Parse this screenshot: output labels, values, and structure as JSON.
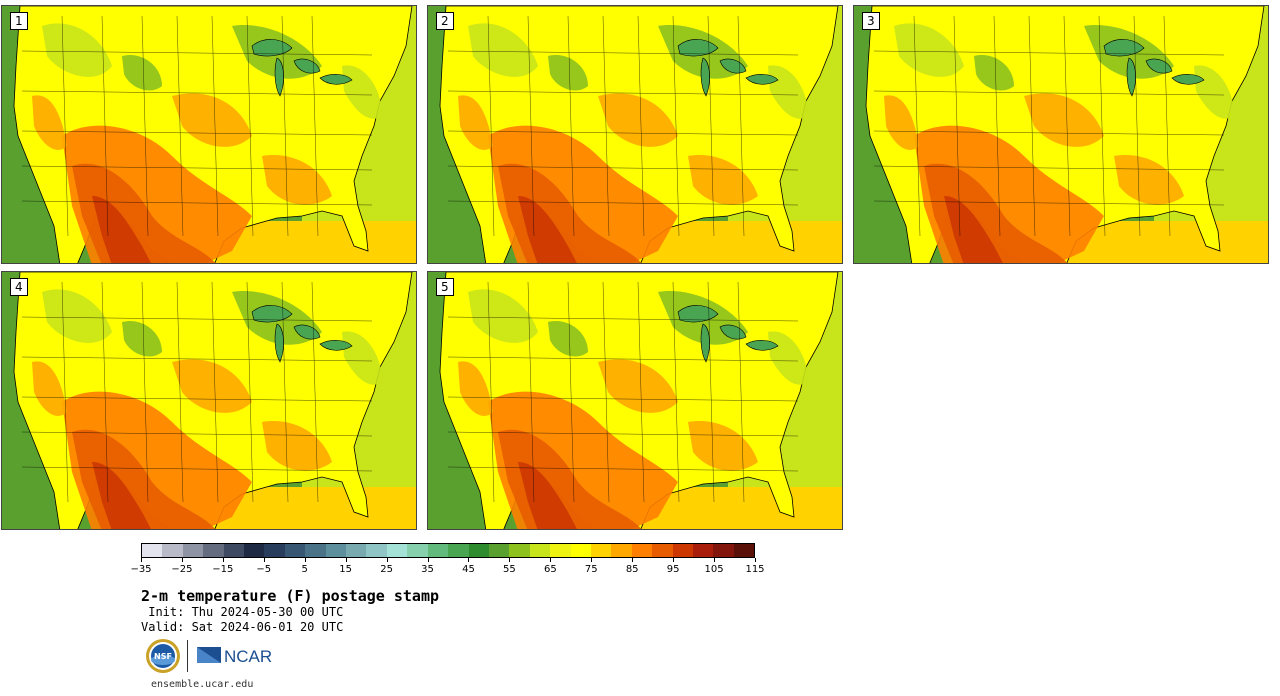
{
  "panels": [
    {
      "label": "1"
    },
    {
      "label": "2"
    },
    {
      "label": "3"
    },
    {
      "label": "4"
    },
    {
      "label": "5"
    }
  ],
  "colorbar": {
    "colors": [
      "#e4e4ee",
      "#b9bcc8",
      "#8f94a4",
      "#646c80",
      "#3e4a62",
      "#1e2a44",
      "#283c5c",
      "#375773",
      "#4a7388",
      "#5e8f9c",
      "#78aab0",
      "#8fc5c4",
      "#a4e2d8",
      "#86d0ae",
      "#62bb7d",
      "#49a552",
      "#2e8c2e",
      "#5aa02f",
      "#8cc11e",
      "#c8e41a",
      "#eef312",
      "#ffff00",
      "#ffd200",
      "#ffa800",
      "#ff7f00",
      "#e85c00",
      "#cc3700",
      "#a81e0a",
      "#83160c",
      "#5a1208"
    ],
    "ticks": [
      "−35",
      "−25",
      "−15",
      "−5",
      "5",
      "15",
      "25",
      "35",
      "45",
      "55",
      "65",
      "75",
      "85",
      "95",
      "105",
      "115"
    ]
  },
  "title": "2-m temperature (F) postage stamp",
  "init": " Init: Thu 2024-05-30 00 UTC",
  "valid": "Valid: Sat 2024-06-01 20 UTC",
  "logos": {
    "nsf": "NSF",
    "ncar": "NCAR"
  },
  "site": "ensemble.ucar.edu"
}
